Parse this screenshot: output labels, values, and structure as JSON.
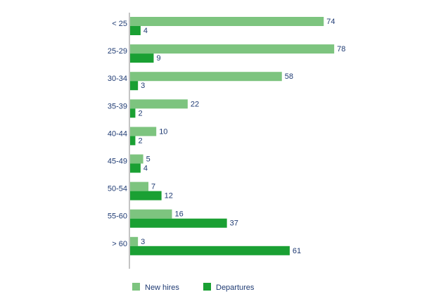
{
  "chart_data": {
    "type": "bar",
    "orientation": "horizontal",
    "categories": [
      "< 25",
      "25-29",
      "30-34",
      "35-39",
      "40-44",
      "45-49",
      "50-54",
      "55-60",
      "> 60"
    ],
    "series": [
      {
        "name": "New hires",
        "values": [
          74,
          78,
          58,
          22,
          10,
          5,
          7,
          16,
          3
        ],
        "color": "#7dc47f"
      },
      {
        "name": "Departures",
        "values": [
          4,
          9,
          3,
          2,
          2,
          4,
          12,
          37,
          61
        ],
        "color": "#1aa033"
      }
    ],
    "xlim": [
      0,
      78
    ],
    "grid": false,
    "legend_position": "bottom",
    "label_color": "#1f3b73",
    "axis_color": "#8a8a8a"
  }
}
